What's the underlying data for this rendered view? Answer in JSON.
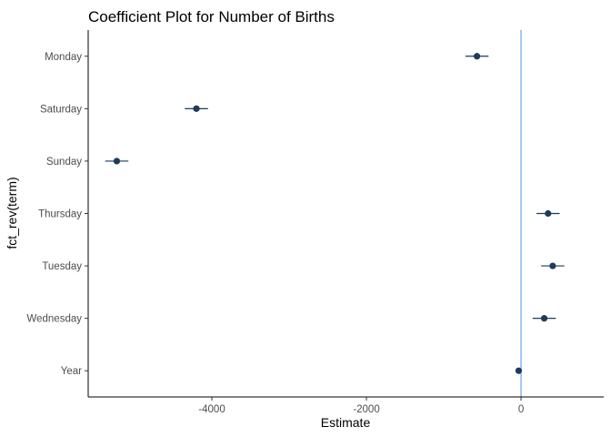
{
  "chart_data": {
    "type": "scatter",
    "title": "Coefficient Plot for Number of Births",
    "xlabel": "Estimate",
    "ylabel": "fct_rev(term)",
    "xlim": [
      -5600,
      1070
    ],
    "xticks": [
      -4000,
      -2000,
      0
    ],
    "xtick_labels": [
      "-4000",
      "-2000",
      "0"
    ],
    "categories": [
      "Monday",
      "Saturday",
      "Sunday",
      "Thursday",
      "Tuesday",
      "Wednesday",
      "Year"
    ],
    "points": [
      {
        "term": "Monday",
        "estimate": -570,
        "low": -720,
        "high": -420
      },
      {
        "term": "Saturday",
        "estimate": -4200,
        "low": -4350,
        "high": -4050
      },
      {
        "term": "Sunday",
        "estimate": -5230,
        "low": -5380,
        "high": -5080
      },
      {
        "term": "Thursday",
        "estimate": 350,
        "low": 200,
        "high": 500
      },
      {
        "term": "Tuesday",
        "estimate": 410,
        "low": 260,
        "high": 560
      },
      {
        "term": "Wednesday",
        "estimate": 300,
        "low": 150,
        "high": 450
      },
      {
        "term": "Year",
        "estimate": -30,
        "low": -60,
        "high": 0
      }
    ],
    "reference_line": {
      "x": 0,
      "color": "#4a90e2"
    },
    "point_color": "#1f3a5a",
    "grid": false,
    "legend": "none"
  }
}
